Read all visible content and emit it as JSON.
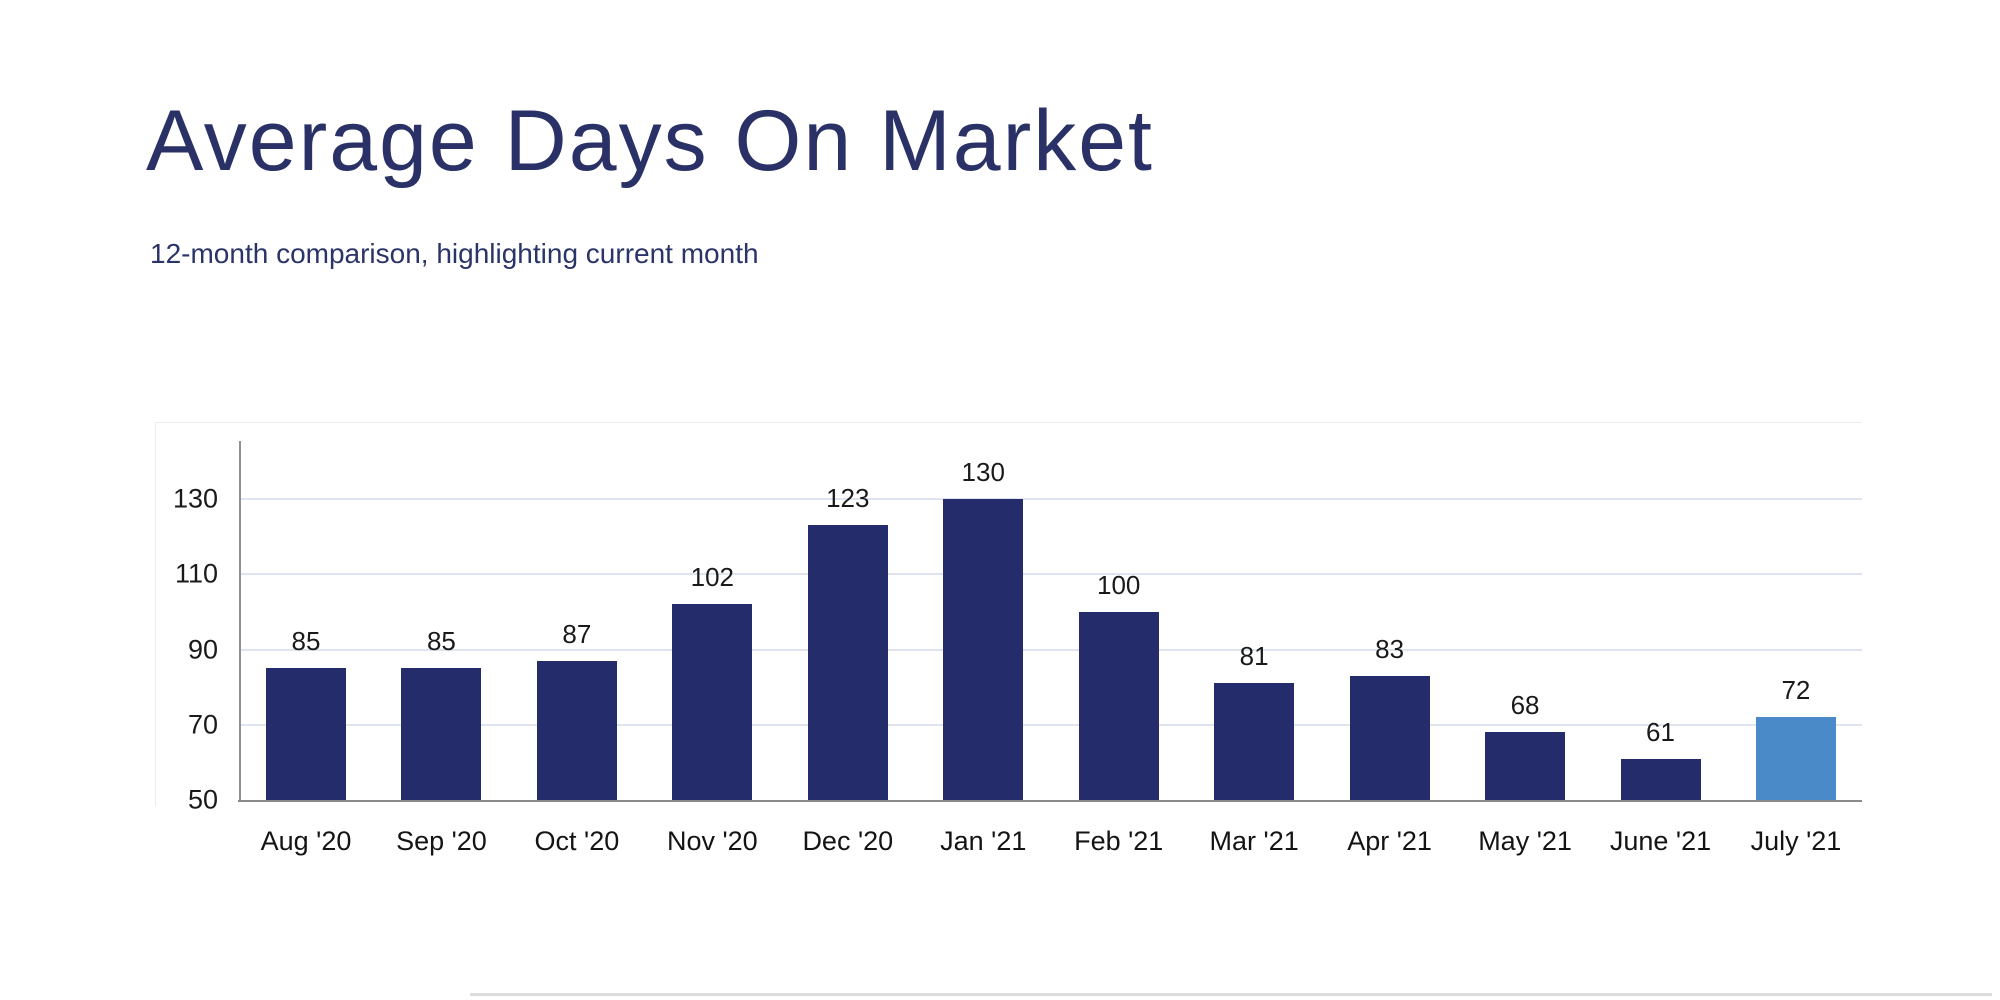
{
  "page": {
    "background": "#ffffff"
  },
  "header": {
    "title": "Average Days On Market",
    "subtitle": "12-month comparison, highlighting current month"
  },
  "chart_data": {
    "type": "bar",
    "title": "Average Days On Market",
    "subtitle": "12-month comparison, highlighting current month",
    "categories": [
      "Aug '20",
      "Sep '20",
      "Oct '20",
      "Nov '20",
      "Dec '20",
      "Jan '21",
      "Feb '21",
      "Mar '21",
      "Apr '21",
      "May '21",
      "June '21",
      "July '21"
    ],
    "values": [
      85,
      85,
      87,
      102,
      123,
      130,
      100,
      81,
      83,
      68,
      61,
      72
    ],
    "highlight_index": 11,
    "highlight_label": "July '21",
    "yticks": [
      50,
      70,
      90,
      110,
      130
    ],
    "ylim": [
      50,
      138
    ],
    "grid": true,
    "legend": false,
    "value_labels": true,
    "xlabel": "",
    "ylabel": "",
    "bar_color": "#252c6b",
    "highlight_color": "#4a8ac9",
    "gridline_color": "#dfe5f0",
    "axis_color": "#8a8a8a",
    "label_color": "#1a1a1a",
    "title_color": "#293166"
  }
}
